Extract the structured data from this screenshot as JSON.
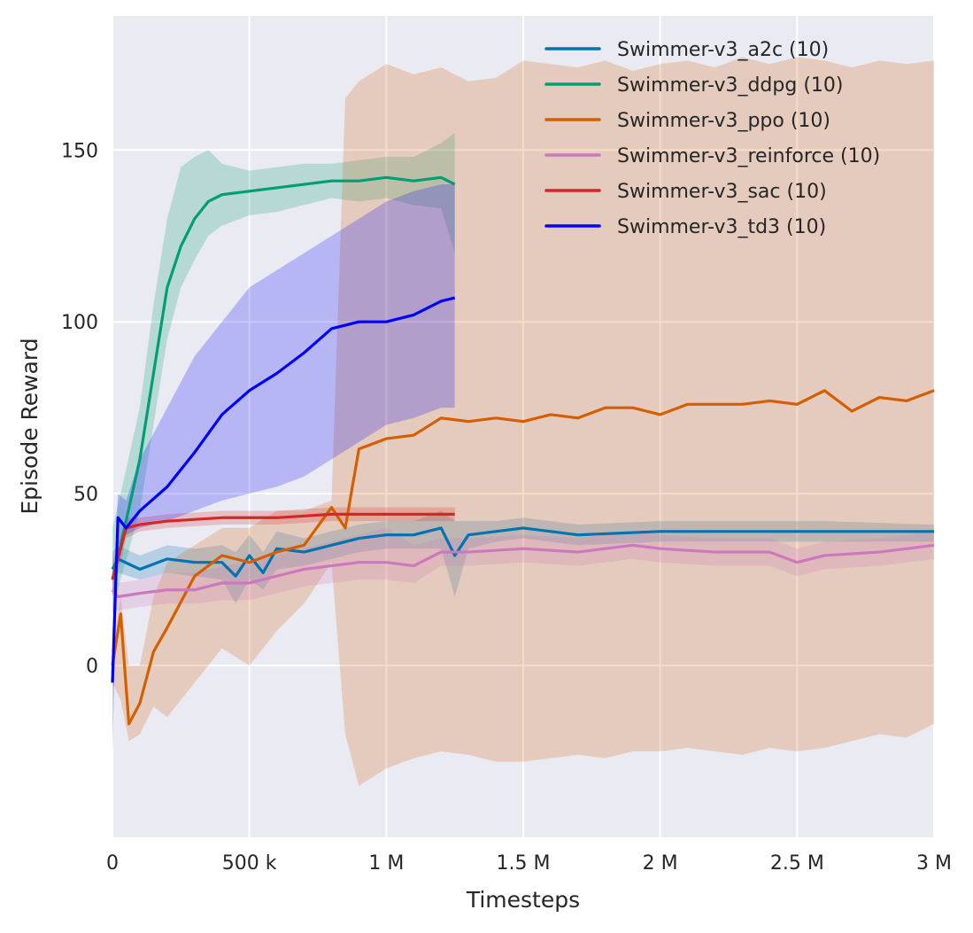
{
  "chart_data": {
    "type": "line",
    "title": "",
    "xlabel": "Timesteps",
    "ylabel": "Episode Reward",
    "xlim": [
      0,
      3000000
    ],
    "ylim": [
      -50,
      189
    ],
    "grid": true,
    "legend_placement": "top-right",
    "background": "#eaeaf2",
    "x_ticks": [
      {
        "v": 0,
        "label": "0"
      },
      {
        "v": 500000,
        "label": "500 k"
      },
      {
        "v": 1000000,
        "label": "1 M"
      },
      {
        "v": 1500000,
        "label": "1.5 M"
      },
      {
        "v": 2000000,
        "label": "2 M"
      },
      {
        "v": 2500000,
        "label": "2.5 M"
      },
      {
        "v": 3000000,
        "label": "3 M"
      }
    ],
    "y_ticks": [
      {
        "v": 0,
        "label": "0"
      },
      {
        "v": 50,
        "label": "50"
      },
      {
        "v": 100,
        "label": "100"
      },
      {
        "v": 150,
        "label": "150"
      }
    ],
    "series": [
      {
        "name": "Swimmer-v3_a2c (10)",
        "color": "#0173b2",
        "x": [
          0,
          20000,
          100000,
          200000,
          300000,
          400000,
          450000,
          500000,
          550000,
          600000,
          700000,
          800000,
          900000,
          1000000,
          1100000,
          1200000,
          1250000,
          1300000,
          1400000,
          1500000,
          1700000,
          2000000,
          2300000,
          2600000,
          3000000
        ],
        "mean": [
          28,
          31,
          28,
          31,
          30,
          30,
          26,
          32,
          27,
          34,
          33,
          35,
          37,
          38,
          38,
          40,
          32,
          38,
          39,
          40,
          38,
          39,
          39,
          39,
          39
        ],
        "lower": [
          20,
          27,
          25,
          27,
          26,
          25,
          18,
          25,
          22,
          28,
          29,
          31,
          33,
          34,
          34,
          34,
          20,
          34,
          36,
          37,
          35,
          36,
          36,
          36,
          36
        ],
        "upper": [
          33,
          35,
          32,
          35,
          34,
          35,
          33,
          38,
          33,
          39,
          37,
          39,
          41,
          42,
          42,
          45,
          42,
          42,
          42,
          43,
          41,
          42,
          42,
          42,
          41
        ]
      },
      {
        "name": "Swimmer-v3_ddpg (10)",
        "color": "#029e73",
        "x": [
          0,
          30000,
          100000,
          150000,
          200000,
          250000,
          300000,
          350000,
          400000,
          500000,
          600000,
          700000,
          800000,
          900000,
          1000000,
          1100000,
          1200000,
          1250000
        ],
        "mean": [
          25,
          35,
          60,
          85,
          110,
          122,
          130,
          135,
          137,
          138,
          139,
          140,
          141,
          141,
          142,
          141,
          142,
          140
        ],
        "lower": [
          15,
          25,
          45,
          70,
          95,
          110,
          118,
          125,
          128,
          131,
          132,
          134,
          136,
          135,
          136,
          134,
          133,
          120
        ],
        "upper": [
          40,
          50,
          75,
          105,
          130,
          145,
          148,
          150,
          146,
          144,
          145,
          146,
          146,
          147,
          148,
          148,
          152,
          155
        ]
      },
      {
        "name": "Swimmer-v3_ppo (10)",
        "color": "#d55e00",
        "x": [
          0,
          30000,
          60000,
          100000,
          150000,
          200000,
          300000,
          400000,
          500000,
          600000,
          700000,
          800000,
          850000,
          900000,
          1000000,
          1100000,
          1200000,
          1300000,
          1400000,
          1500000,
          1600000,
          1700000,
          1800000,
          1900000,
          2000000,
          2100000,
          2200000,
          2300000,
          2400000,
          2500000,
          2600000,
          2700000,
          2800000,
          2900000,
          3000000
        ],
        "mean": [
          0,
          15,
          -17,
          -11,
          4,
          11,
          26,
          32,
          30,
          33,
          35,
          46,
          40,
          63,
          66,
          67,
          72,
          71,
          72,
          71,
          73,
          72,
          75,
          75,
          73,
          76,
          76,
          76,
          77,
          76,
          80,
          74,
          78,
          77,
          80
        ],
        "lower": [
          -5,
          -10,
          -22,
          -20,
          -12,
          -15,
          -5,
          5,
          0,
          10,
          18,
          30,
          -20,
          -35,
          -30,
          -27,
          -25,
          -26,
          -28,
          -28,
          -27,
          -26,
          -27,
          -25,
          -25,
          -24,
          -25,
          -26,
          -24,
          -25,
          -24,
          -22,
          -20,
          -21,
          -17
        ],
        "upper": [
          5,
          20,
          0,
          0,
          20,
          30,
          35,
          40,
          40,
          45,
          45,
          48,
          165,
          170,
          175,
          172,
          174,
          170,
          171,
          176,
          175,
          174,
          176,
          173,
          175,
          176,
          174,
          177,
          175,
          177,
          176,
          174,
          176,
          175,
          176
        ]
      },
      {
        "name": "Swimmer-v3_reinforce (10)",
        "color": "#cc78bc",
        "x": [
          0,
          20000,
          100000,
          200000,
          300000,
          400000,
          500000,
          600000,
          700000,
          800000,
          900000,
          1000000,
          1100000,
          1200000,
          1300000,
          1500000,
          1700000,
          1900000,
          2000000,
          2200000,
          2400000,
          2500000,
          2600000,
          2800000,
          3000000
        ],
        "mean": [
          22,
          20,
          21,
          22,
          22,
          24,
          24,
          26,
          28,
          29,
          30,
          30,
          29,
          33,
          33,
          34,
          33,
          35,
          34,
          33,
          33,
          30,
          32,
          33,
          35
        ],
        "lower": [
          15,
          16,
          17,
          18,
          18,
          19,
          19,
          21,
          23,
          24,
          25,
          25,
          24,
          29,
          29,
          30,
          29,
          31,
          30,
          29,
          29,
          26,
          28,
          29,
          31
        ],
        "upper": [
          26,
          24,
          25,
          27,
          27,
          29,
          30,
          32,
          34,
          36,
          38,
          40,
          35,
          37,
          37,
          38,
          37,
          39,
          38,
          37,
          37,
          34,
          36,
          37,
          39
        ]
      },
      {
        "name": "Swimmer-v3_sac (10)",
        "color": "#d62728",
        "x": [
          0,
          50000,
          100000,
          200000,
          400000,
          600000,
          800000,
          1000000,
          1250000
        ],
        "mean": [
          25,
          40,
          41,
          42,
          43,
          43,
          44,
          44,
          44
        ],
        "lower": [
          20,
          37,
          39,
          40,
          41,
          41,
          42,
          42,
          42
        ],
        "upper": [
          30,
          43,
          43,
          44,
          45,
          45,
          46,
          46,
          46
        ]
      },
      {
        "name": "Swimmer-v3_td3 (10)",
        "color": "#0000ff",
        "x": [
          0,
          20000,
          50000,
          100000,
          200000,
          300000,
          400000,
          500000,
          600000,
          700000,
          800000,
          900000,
          1000000,
          1100000,
          1200000,
          1250000
        ],
        "mean": [
          -5,
          43,
          40,
          45,
          52,
          62,
          73,
          80,
          85,
          91,
          98,
          100,
          100,
          102,
          106,
          107
        ],
        "lower": [
          -25,
          35,
          38,
          40,
          42,
          45,
          48,
          50,
          52,
          55,
          60,
          65,
          70,
          72,
          75,
          75
        ],
        "upper": [
          10,
          50,
          48,
          60,
          75,
          90,
          100,
          110,
          115,
          120,
          125,
          130,
          135,
          138,
          140,
          140
        ]
      }
    ]
  }
}
